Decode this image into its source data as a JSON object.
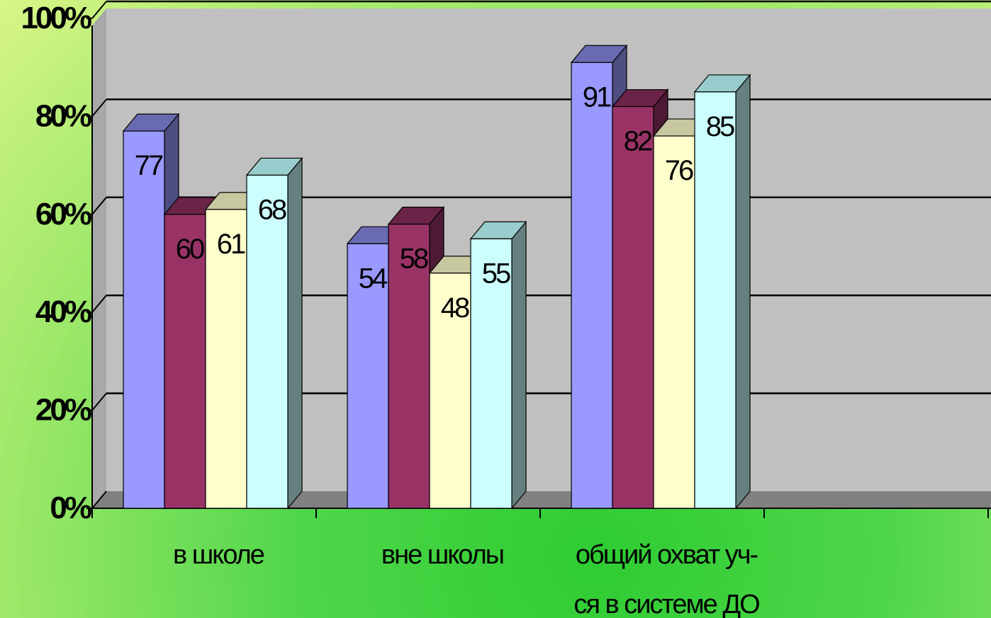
{
  "chart_data": {
    "type": "bar",
    "categories": [
      [
        "в  школе"
      ],
      [
        "вне школы"
      ],
      [
        "общий охват уч-",
        "ся в  системе ДО"
      ]
    ],
    "series": [
      {
        "values": [
          77,
          54,
          91
        ]
      },
      {
        "values": [
          60,
          58,
          82
        ]
      },
      {
        "values": [
          61,
          48,
          76
        ]
      },
      {
        "values": [
          68,
          55,
          85
        ]
      }
    ],
    "y_ticks": [
      "0%",
      "20%",
      "40%",
      "60%",
      "80%",
      "100%"
    ],
    "ylim": [
      0,
      100
    ],
    "grid": true,
    "legend": "none",
    "colors": {
      "series_front": [
        "#9999ff",
        "#993366",
        "#ffffcc",
        "#ccffff"
      ],
      "series_top": [
        "#6a6ab2",
        "#6b2447",
        "#c8c8a0",
        "#99cccc"
      ],
      "series_side": [
        "#4d4d80",
        "#4d1a33",
        "#808066",
        "#668080"
      ],
      "wall": "#c0c0c0",
      "floor": "#808080",
      "gridline": "#000000"
    }
  }
}
